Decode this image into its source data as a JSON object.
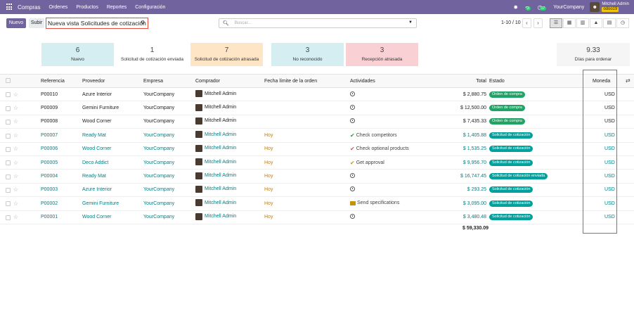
{
  "topbar": {
    "app_name": "Compras",
    "menus": [
      "Ordenes",
      "Productos",
      "Reportes",
      "Configuración"
    ],
    "chat_badge": "3",
    "activity_badge": "17",
    "company": "YourCompany",
    "user_name": "Mitchell Admin",
    "db_name": "odoo19"
  },
  "controls": {
    "new_label": "Nuevo",
    "upload_label": "Subir",
    "view_title": "Nueva vista Solicitudes de cotización",
    "search_placeholder": "Buscar...",
    "pager": "1-10 / 10"
  },
  "cards": [
    {
      "value": "6",
      "label": "Nuevo",
      "color": "#d4eef2"
    },
    {
      "value": "1",
      "label": "Solicitud de cotización enviada",
      "color": "#ffffff"
    },
    {
      "value": "7",
      "label": "Solicitud de cotización atrasada",
      "color": "#fde5c6"
    },
    {
      "value": "3",
      "label": "No reconocido",
      "color": "#d4eef2"
    },
    {
      "value": "3",
      "label": "Recepción atrasada",
      "color": "#f9d0d3"
    }
  ],
  "days_card": {
    "value": "9.33",
    "label": "Días para ordenar"
  },
  "table": {
    "headers": [
      "Referencia",
      "Proveedor",
      "Empresa",
      "Comprador",
      "Fecha límite de la orden",
      "Actividades",
      "Total",
      "Estado",
      "Moneda"
    ],
    "rows": [
      {
        "ref": "P00010",
        "vendor": "Azure Interior",
        "company": "YourCompany",
        "buyer": "Mitchell Admin",
        "deadline": "",
        "activity": "",
        "act_type": "clock",
        "total": "$ 2,880.75",
        "state": "Orden de compra",
        "state_color": "green",
        "currency": "USD",
        "future": false
      },
      {
        "ref": "P00009",
        "vendor": "Gemini Furniture",
        "company": "YourCompany",
        "buyer": "Mitchell Admin",
        "deadline": "",
        "activity": "",
        "act_type": "clock",
        "total": "$ 12,500.00",
        "state": "Orden de compra",
        "state_color": "green",
        "currency": "USD",
        "future": false
      },
      {
        "ref": "P00008",
        "vendor": "Wood Corner",
        "company": "YourCompany",
        "buyer": "Mitchell Admin",
        "deadline": "",
        "activity": "",
        "act_type": "clock",
        "total": "$ 7,435.33",
        "state": "Orden de compra",
        "state_color": "green",
        "currency": "USD",
        "future": false
      },
      {
        "ref": "P00007",
        "vendor": "Ready Mat",
        "company": "YourCompany",
        "buyer": "Mitchell Admin",
        "deadline": "Hoy",
        "activity": "Check competitors",
        "act_type": "ok",
        "total": "$ 1,405.88",
        "state": "Solicitud de cotización",
        "state_color": "teal",
        "currency": "USD",
        "future": true
      },
      {
        "ref": "P00006",
        "vendor": "Wood Corner",
        "company": "YourCompany",
        "buyer": "Mitchell Admin",
        "deadline": "Hoy",
        "activity": "Check optional products",
        "act_type": "bad",
        "total": "$ 1,535.25",
        "state": "Solicitud de cotización",
        "state_color": "teal",
        "currency": "USD",
        "future": true
      },
      {
        "ref": "P00005",
        "vendor": "Deco Addict",
        "company": "YourCompany",
        "buyer": "Mitchell Admin",
        "deadline": "Hoy",
        "activity": "Get approval",
        "act_type": "warn",
        "total": "$ 9,956.70",
        "state": "Solicitud de cotización",
        "state_color": "teal",
        "currency": "USD",
        "future": true
      },
      {
        "ref": "P00004",
        "vendor": "Ready Mat",
        "company": "YourCompany",
        "buyer": "Mitchell Admin",
        "deadline": "Hoy",
        "activity": "",
        "act_type": "clock",
        "total": "$ 16,747.45",
        "state": "Solicitud de cotización enviada",
        "state_color": "teal",
        "currency": "USD",
        "future": true
      },
      {
        "ref": "P00003",
        "vendor": "Azure Interior",
        "company": "YourCompany",
        "buyer": "Mitchell Admin",
        "deadline": "Hoy",
        "activity": "",
        "act_type": "clock",
        "total": "$ 293.25",
        "state": "Solicitud de cotización",
        "state_color": "teal",
        "currency": "USD",
        "future": true
      },
      {
        "ref": "P00002",
        "vendor": "Gemini Furniture",
        "company": "YourCompany",
        "buyer": "Mitchell Admin",
        "deadline": "Hoy",
        "activity": "Send specifications",
        "act_type": "mail",
        "total": "$ 3,095.00",
        "state": "Solicitud de cotización",
        "state_color": "teal",
        "currency": "USD",
        "future": true
      },
      {
        "ref": "P00001",
        "vendor": "Wood Corner",
        "company": "YourCompany",
        "buyer": "Mitchell Admin",
        "deadline": "Hoy",
        "activity": "",
        "act_type": "clock",
        "total": "$ 3,480.48",
        "state": "Solicitud de cotización",
        "state_color": "teal",
        "currency": "USD",
        "future": true
      }
    ],
    "grand_total": "$ 59,330.09"
  }
}
